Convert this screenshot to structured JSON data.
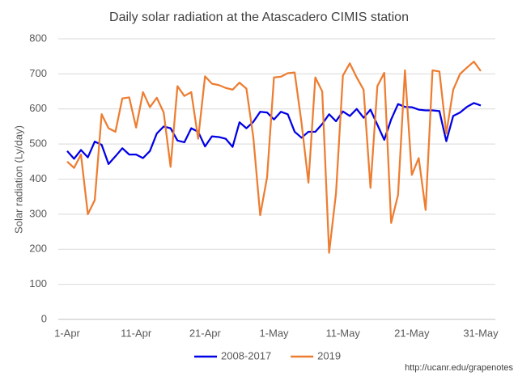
{
  "chart_data": {
    "type": "line",
    "title": "Daily solar radiation at the Atascadero CIMIS station",
    "y_label": "Solar radiation (Ly/day)",
    "source": "http://ucanr.edu/grapenotes",
    "categories": [
      "1-Apr",
      null,
      null,
      null,
      null,
      null,
      null,
      null,
      null,
      null,
      "11-Apr",
      null,
      null,
      null,
      null,
      null,
      null,
      null,
      null,
      null,
      "21-Apr",
      null,
      null,
      null,
      null,
      null,
      null,
      null,
      null,
      null,
      "1-May",
      null,
      null,
      null,
      null,
      null,
      null,
      null,
      null,
      null,
      "11-May",
      null,
      null,
      null,
      null,
      null,
      null,
      null,
      null,
      null,
      "21-May",
      null,
      null,
      null,
      null,
      null,
      null,
      null,
      null,
      null,
      "31-May"
    ],
    "series": [
      {
        "name": "2008-2017",
        "color": "#0000e6",
        "values": [
          480,
          458,
          483,
          462,
          507,
          498,
          443,
          465,
          488,
          470,
          470,
          460,
          480,
          530,
          550,
          545,
          510,
          505,
          545,
          535,
          493,
          522,
          520,
          515,
          492,
          562,
          545,
          563,
          592,
          590,
          570,
          592,
          585,
          535,
          518,
          535,
          535,
          557,
          585,
          565,
          593,
          580,
          600,
          575,
          598,
          555,
          512,
          570,
          614,
          606,
          605,
          598,
          596,
          596,
          594,
          508,
          580,
          590,
          606,
          617,
          610
        ]
      },
      {
        "name": "2019",
        "color": "#ed7d31",
        "values": [
          450,
          432,
          470,
          300,
          340,
          585,
          545,
          535,
          630,
          633,
          547,
          648,
          605,
          632,
          590,
          435,
          665,
          637,
          648,
          515,
          693,
          672,
          668,
          660,
          655,
          675,
          658,
          520,
          297,
          405,
          690,
          692,
          702,
          704,
          560,
          390,
          690,
          650,
          190,
          360,
          695,
          730,
          690,
          655,
          375,
          665,
          703,
          275,
          355,
          710,
          412,
          460,
          312,
          710,
          707,
          530,
          655,
          700,
          718,
          735,
          708
        ]
      }
    ],
    "ylim": [
      0,
      800
    ],
    "yticks": [
      0,
      100,
      200,
      300,
      400,
      500,
      600,
      700,
      800
    ],
    "grid": true,
    "legend": "bottom"
  }
}
